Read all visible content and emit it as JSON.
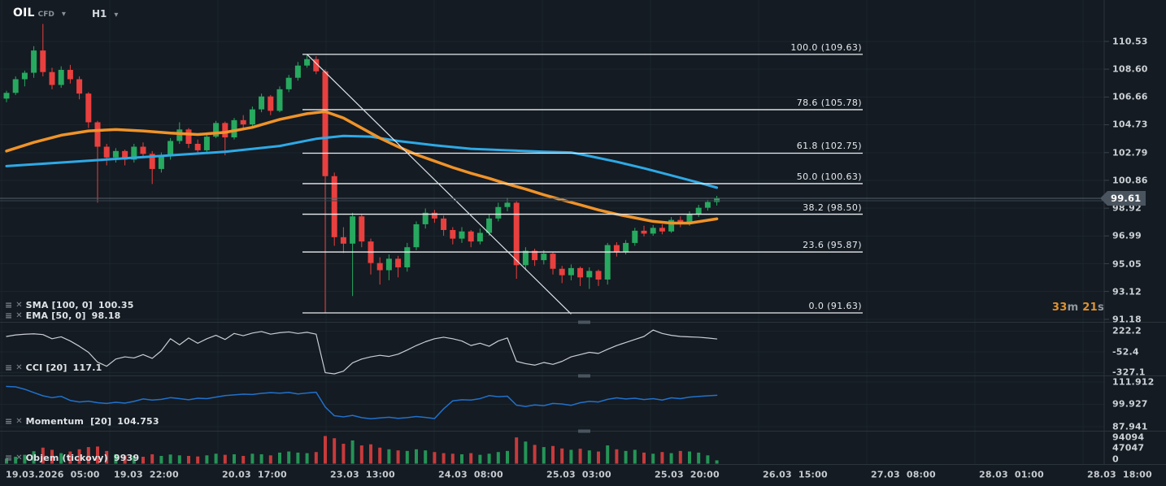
{
  "app": {
    "symbol": "OIL",
    "symbol_type": "CFD",
    "timeframe": "H1"
  },
  "colors": {
    "background": "#141b22",
    "bullish": "#27a95f",
    "bearish": "#e8403f",
    "sma_line": "#2ea9e6",
    "ema_line": "#f09329",
    "fib_line": "#e9edf0",
    "trend_line": "#dce3e9",
    "cci_line": "#c9ced3",
    "momentum_line": "#2071cc",
    "grid": "#1c242c",
    "separator": "#2b333c",
    "current_price_line": "#566069",
    "badge_bg": "#4a545e",
    "countdown_accent": "#e0922f"
  },
  "price_axis": {
    "current": "99.61",
    "tick_labels": [
      "110.53",
      "108.60",
      "106.66",
      "104.73",
      "102.79",
      "100.86",
      "98.92",
      "96.99",
      "95.05",
      "93.12",
      "91.18"
    ],
    "tick_values": [
      110.53,
      108.6,
      106.66,
      104.73,
      102.79,
      100.86,
      98.92,
      96.99,
      95.05,
      93.12,
      91.18
    ]
  },
  "time_axis": {
    "labels": [
      "19.03.2026  05:00",
      "19.03  22:00",
      "20.03  17:00",
      "23.03  13:00",
      "24.03  08:00",
      "25.03  03:00",
      "25.03  20:00",
      "26.03  15:00",
      "27.03  08:00",
      "28.03  01:00",
      "28.03  18:00"
    ]
  },
  "countdown": {
    "minutes": "33",
    "minutes_unit": "m ",
    "seconds": "21",
    "seconds_unit": "s"
  },
  "indicators": {
    "sma": {
      "label": "SMA [100, 0]",
      "value": "100.35"
    },
    "ema": {
      "label": "EMA [50, 0]",
      "value": "98.18"
    },
    "cci": {
      "label": "CCI [20]",
      "value": "117.1",
      "axis_labels": [
        "222.2",
        "-52.4",
        "-327.1"
      ],
      "axis_values": [
        222.2,
        -52.4,
        -327.1
      ]
    },
    "momentum": {
      "label": "Momentum  [20]",
      "value": "104.753",
      "axis_labels": [
        "111.912",
        "99.927",
        "87.941"
      ],
      "axis_values": [
        111.912,
        99.927,
        87.941
      ]
    },
    "volume": {
      "label": "Objem (tickovy)",
      "value": "9939",
      "axis_labels": [
        "94094",
        "47047",
        "0"
      ],
      "axis_values": [
        94094,
        47047,
        0
      ]
    }
  },
  "fibonacci": {
    "levels": [
      {
        "label": "100.0 (109.63)",
        "price": 109.63
      },
      {
        "label": "78.6 (105.78)",
        "price": 105.78
      },
      {
        "label": "61.8 (102.75)",
        "price": 102.75
      },
      {
        "label": "50.0 (100.63)",
        "price": 100.63
      },
      {
        "label": "38.2 (98.50)",
        "price": 98.5
      },
      {
        "label": "23.6 (95.87)",
        "price": 95.87
      },
      {
        "label": "0.0 (91.63)",
        "price": 91.63
      }
    ]
  },
  "chart_data": {
    "type": "candlestick",
    "symbol": "OIL CFD",
    "timeframe": "H1",
    "current_price": 99.61,
    "price_axis_range": [
      91.18,
      110.53
    ],
    "candles_ohlc": [
      [
        106.55,
        107.1,
        106.3,
        106.95
      ],
      [
        106.95,
        108.1,
        106.8,
        107.9
      ],
      [
        107.9,
        108.5,
        107.4,
        108.35
      ],
      [
        108.35,
        110.2,
        108.0,
        109.9
      ],
      [
        109.9,
        111.75,
        108.1,
        108.4
      ],
      [
        108.4,
        108.7,
        107.2,
        107.5
      ],
      [
        107.5,
        108.8,
        107.3,
        108.55
      ],
      [
        108.55,
        108.9,
        107.6,
        107.9
      ],
      [
        107.9,
        108.1,
        106.5,
        106.9
      ],
      [
        106.9,
        107.0,
        104.5,
        104.9
      ],
      [
        104.9,
        105.0,
        99.3,
        103.2
      ],
      [
        103.2,
        103.4,
        101.9,
        102.45
      ],
      [
        102.45,
        103.1,
        102.1,
        102.9
      ],
      [
        102.9,
        103.0,
        101.9,
        102.3
      ],
      [
        102.3,
        103.4,
        102.1,
        103.2
      ],
      [
        103.2,
        103.5,
        102.4,
        102.7
      ],
      [
        102.7,
        102.9,
        100.6,
        101.65
      ],
      [
        101.65,
        102.8,
        101.4,
        102.6
      ],
      [
        102.6,
        103.8,
        102.3,
        103.6
      ],
      [
        103.6,
        104.9,
        103.4,
        104.4
      ],
      [
        104.4,
        104.5,
        103.1,
        103.4
      ],
      [
        103.4,
        103.7,
        102.7,
        102.95
      ],
      [
        102.95,
        104.1,
        102.75,
        103.9
      ],
      [
        103.9,
        105.0,
        103.8,
        104.85
      ],
      [
        104.85,
        104.95,
        102.6,
        103.85
      ],
      [
        103.85,
        105.2,
        103.7,
        105.05
      ],
      [
        105.05,
        105.4,
        104.5,
        104.75
      ],
      [
        104.75,
        106.0,
        104.6,
        105.8
      ],
      [
        105.8,
        106.9,
        105.6,
        106.7
      ],
      [
        106.7,
        106.8,
        105.4,
        105.7
      ],
      [
        105.7,
        107.4,
        105.6,
        107.2
      ],
      [
        107.2,
        108.2,
        107.0,
        108.0
      ],
      [
        108.0,
        109.1,
        107.8,
        108.85
      ],
      [
        108.85,
        109.63,
        108.7,
        109.3
      ],
      [
        109.3,
        109.5,
        108.25,
        108.45
      ],
      [
        108.45,
        108.6,
        91.63,
        101.15
      ],
      [
        101.15,
        101.4,
        96.3,
        96.9
      ],
      [
        96.9,
        97.6,
        95.8,
        96.45
      ],
      [
        96.45,
        98.6,
        92.8,
        98.35
      ],
      [
        98.35,
        98.5,
        96.2,
        96.6
      ],
      [
        96.6,
        96.8,
        94.3,
        95.1
      ],
      [
        95.1,
        95.5,
        93.6,
        94.6
      ],
      [
        94.6,
        95.7,
        93.9,
        95.4
      ],
      [
        95.4,
        95.6,
        94.1,
        94.8
      ],
      [
        94.8,
        96.5,
        94.5,
        96.2
      ],
      [
        96.2,
        98.0,
        96.0,
        97.8
      ],
      [
        97.8,
        98.9,
        97.5,
        98.6
      ],
      [
        98.6,
        98.8,
        97.9,
        98.2
      ],
      [
        98.2,
        98.4,
        97.0,
        97.4
      ],
      [
        97.4,
        97.6,
        96.4,
        96.8
      ],
      [
        96.8,
        97.6,
        96.5,
        97.3
      ],
      [
        97.3,
        97.4,
        96.2,
        96.6
      ],
      [
        96.6,
        97.5,
        96.4,
        97.2
      ],
      [
        97.2,
        98.5,
        97.0,
        98.2
      ],
      [
        98.2,
        99.3,
        98.0,
        99.0
      ],
      [
        99.0,
        99.65,
        98.7,
        99.3
      ],
      [
        99.3,
        99.4,
        94.0,
        94.95
      ],
      [
        94.95,
        96.2,
        94.6,
        95.95
      ],
      [
        95.95,
        96.1,
        94.9,
        95.3
      ],
      [
        95.3,
        96.0,
        95.0,
        95.75
      ],
      [
        95.75,
        95.85,
        94.3,
        94.7
      ],
      [
        94.7,
        94.9,
        93.7,
        94.25
      ],
      [
        94.25,
        95.0,
        93.9,
        94.75
      ],
      [
        94.75,
        94.85,
        93.5,
        94.1
      ],
      [
        94.1,
        94.8,
        93.3,
        94.55
      ],
      [
        94.55,
        94.65,
        93.5,
        93.95
      ],
      [
        93.95,
        96.5,
        93.6,
        96.35
      ],
      [
        96.35,
        96.55,
        95.55,
        95.85
      ],
      [
        95.85,
        96.7,
        95.7,
        96.5
      ],
      [
        96.5,
        97.55,
        96.3,
        97.35
      ],
      [
        97.35,
        97.7,
        96.95,
        97.15
      ],
      [
        97.15,
        97.75,
        97.0,
        97.55
      ],
      [
        97.55,
        97.8,
        97.1,
        97.3
      ],
      [
        97.3,
        98.3,
        97.2,
        98.1
      ],
      [
        98.1,
        98.35,
        97.6,
        97.85
      ],
      [
        97.85,
        98.7,
        97.7,
        98.5
      ],
      [
        98.5,
        99.15,
        98.3,
        98.95
      ],
      [
        98.95,
        99.5,
        98.75,
        99.35
      ],
      [
        99.35,
        99.78,
        99.1,
        99.61
      ]
    ],
    "sma100_points": [
      [
        0,
        101.85
      ],
      [
        6,
        102.1
      ],
      [
        12,
        102.35
      ],
      [
        18,
        102.6
      ],
      [
        24,
        102.85
      ],
      [
        30,
        103.25
      ],
      [
        34,
        103.75
      ],
      [
        37,
        103.95
      ],
      [
        40,
        103.9
      ],
      [
        43,
        103.6
      ],
      [
        47,
        103.3
      ],
      [
        51,
        103.05
      ],
      [
        55,
        102.95
      ],
      [
        59,
        102.85
      ],
      [
        62,
        102.8
      ],
      [
        64,
        102.55
      ],
      [
        67,
        102.15
      ],
      [
        70,
        101.7
      ],
      [
        73,
        101.2
      ],
      [
        76,
        100.7
      ],
      [
        78,
        100.35
      ]
    ],
    "ema50_points": [
      [
        0,
        102.9
      ],
      [
        3,
        103.5
      ],
      [
        6,
        104.0
      ],
      [
        9,
        104.3
      ],
      [
        12,
        104.4
      ],
      [
        15,
        104.3
      ],
      [
        18,
        104.15
      ],
      [
        21,
        104.05
      ],
      [
        24,
        104.2
      ],
      [
        27,
        104.55
      ],
      [
        30,
        105.1
      ],
      [
        33,
        105.5
      ],
      [
        35,
        105.65
      ],
      [
        37,
        105.2
      ],
      [
        39,
        104.5
      ],
      [
        41,
        103.8
      ],
      [
        43,
        103.2
      ],
      [
        45,
        102.65
      ],
      [
        47,
        102.2
      ],
      [
        49,
        101.75
      ],
      [
        51,
        101.35
      ],
      [
        53,
        101.0
      ],
      [
        55,
        100.6
      ],
      [
        57,
        100.25
      ],
      [
        59,
        99.85
      ],
      [
        61,
        99.5
      ],
      [
        63,
        99.15
      ],
      [
        65,
        98.8
      ],
      [
        67,
        98.5
      ],
      [
        69,
        98.25
      ],
      [
        71,
        98.0
      ],
      [
        73,
        97.88
      ],
      [
        75,
        97.88
      ],
      [
        78,
        98.18
      ]
    ],
    "cci_values": [
      150,
      170,
      180,
      185,
      175,
      120,
      145,
      90,
      20,
      -60,
      -190,
      -245,
      -150,
      -120,
      -135,
      -90,
      -140,
      -40,
      120,
      40,
      130,
      60,
      120,
      165,
      110,
      190,
      160,
      195,
      215,
      180,
      200,
      210,
      190,
      205,
      180,
      -330,
      -352,
      -310,
      -200,
      -150,
      -120,
      -100,
      -115,
      -85,
      -30,
      30,
      80,
      120,
      140,
      120,
      90,
      30,
      60,
      20,
      90,
      130,
      -180,
      -210,
      -230,
      -195,
      -220,
      -180,
      -120,
      -90,
      -60,
      -75,
      -20,
      30,
      70,
      110,
      150,
      235,
      190,
      165,
      150,
      145,
      140,
      130,
      117.1
    ],
    "momentum_values": [
      109.5,
      109.3,
      108.0,
      106.2,
      104.5,
      103.5,
      104.2,
      102.0,
      101.2,
      101.6,
      100.8,
      100.4,
      101.0,
      100.6,
      101.5,
      102.8,
      102.2,
      102.6,
      103.5,
      103.0,
      102.4,
      103.2,
      103.0,
      103.8,
      104.6,
      105.0,
      105.4,
      105.2,
      105.8,
      106.2,
      105.9,
      106.3,
      105.5,
      106.0,
      106.4,
      98.5,
      93.8,
      93.2,
      94.0,
      92.8,
      92.2,
      92.6,
      93.0,
      92.4,
      92.8,
      93.4,
      92.9,
      92.3,
      97.5,
      101.8,
      102.4,
      102.2,
      103.0,
      104.6,
      104.0,
      104.3,
      99.5,
      98.8,
      99.6,
      99.2,
      100.4,
      100.1,
      99.4,
      100.8,
      101.5,
      101.2,
      102.6,
      103.4,
      102.8,
      103.2,
      102.5,
      103.0,
      102.2,
      103.4,
      103.0,
      103.8,
      104.2,
      104.5,
      104.753
    ],
    "volume_relative": [
      0.18,
      0.25,
      0.32,
      0.45,
      0.58,
      0.5,
      0.38,
      0.44,
      0.52,
      0.6,
      0.62,
      0.46,
      0.34,
      0.3,
      0.28,
      0.25,
      0.34,
      0.28,
      0.33,
      0.3,
      0.28,
      0.26,
      0.3,
      0.36,
      0.32,
      0.34,
      0.28,
      0.36,
      0.34,
      0.3,
      0.4,
      0.44,
      0.4,
      0.38,
      0.42,
      1.0,
      0.92,
      0.72,
      0.84,
      0.66,
      0.7,
      0.58,
      0.52,
      0.48,
      0.46,
      0.52,
      0.48,
      0.42,
      0.38,
      0.36,
      0.34,
      0.38,
      0.32,
      0.36,
      0.42,
      0.46,
      0.95,
      0.8,
      0.68,
      0.6,
      0.64,
      0.55,
      0.5,
      0.54,
      0.48,
      0.44,
      0.66,
      0.52,
      0.46,
      0.5,
      0.4,
      0.36,
      0.42,
      0.38,
      0.46,
      0.44,
      0.4,
      0.3,
      0.12
    ],
    "trendline": {
      "from_index": 33,
      "from_price": 109.63,
      "to_index": 62,
      "to_price": 91.55
    }
  }
}
